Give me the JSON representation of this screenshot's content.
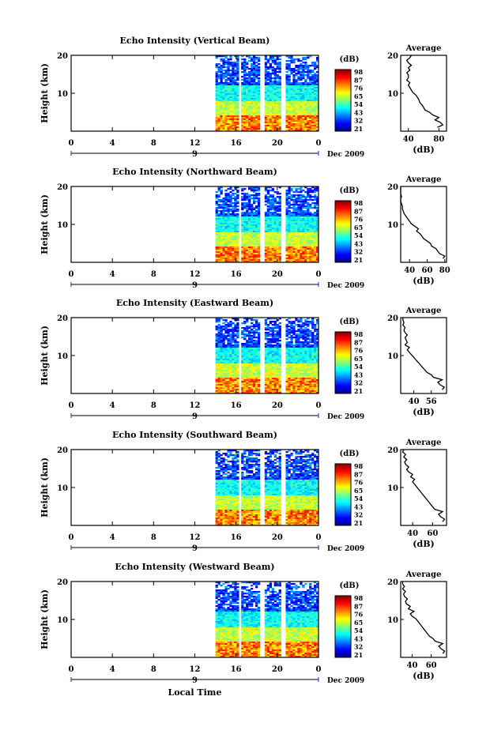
{
  "chart_data": [
    {
      "type": "heatmap",
      "title": "Echo Intensity (Vertical Beam)",
      "ylabel": "Height (km)",
      "x_ticks": [
        "0",
        "4",
        "8",
        "12",
        "16",
        "20",
        "0"
      ],
      "date_tick": "9",
      "date_label": "Dec 2009",
      "ylim": [
        0,
        20
      ],
      "y_ticks": [
        "10",
        "20"
      ],
      "colorbar": {
        "unit": "(dB)",
        "ticks": [
          "98",
          "87",
          "76",
          "65",
          "54",
          "43",
          "32",
          "21"
        ]
      },
      "profile": {
        "title": "Average",
        "xlabel": "(dB)",
        "x_ticks": [
          "40",
          "80"
        ],
        "xlim": [
          30,
          90
        ],
        "values": [
          78,
          85,
          82,
          75,
          80,
          72,
          68,
          62,
          60,
          58,
          55,
          54,
          52,
          50,
          46,
          44,
          42,
          40,
          42,
          38,
          40,
          40,
          38,
          42,
          40,
          44,
          40,
          38,
          42,
          44
        ]
      }
    },
    {
      "type": "heatmap",
      "title": "Echo Intensity (Northward Beam)",
      "ylabel": "Height (km)",
      "x_ticks": [
        "0",
        "4",
        "8",
        "12",
        "16",
        "20",
        "0"
      ],
      "date_tick": "9",
      "date_label": "Dec 2009",
      "ylim": [
        0,
        20
      ],
      "y_ticks": [
        "10",
        "20"
      ],
      "colorbar": {
        "unit": "(dB)",
        "ticks": [
          "98",
          "87",
          "76",
          "65",
          "54",
          "43",
          "32",
          "21"
        ]
      },
      "profile": {
        "title": "Average",
        "xlabel": "(dB)",
        "x_ticks": [
          "40",
          "60",
          "80"
        ],
        "xlim": [
          30,
          82
        ],
        "values": [
          78,
          80,
          74,
          72,
          70,
          65,
          64,
          60,
          56,
          54,
          52,
          48,
          50,
          46,
          42,
          40,
          38,
          36,
          34,
          33,
          32,
          32,
          31,
          30,
          30,
          31,
          30,
          29,
          30,
          30
        ]
      }
    },
    {
      "type": "heatmap",
      "title": "Echo Intensity (Eastward Beam)",
      "ylabel": "Height (km)",
      "x_ticks": [
        "0",
        "4",
        "8",
        "12",
        "16",
        "20",
        "0"
      ],
      "date_tick": "9",
      "date_label": "Dec 2009",
      "ylim": [
        0,
        20
      ],
      "y_ticks": [
        "10",
        "20"
      ],
      "colorbar": {
        "unit": "(dB)",
        "ticks": [
          "98",
          "87",
          "76",
          "65",
          "54",
          "43",
          "32",
          "21"
        ]
      },
      "profile": {
        "title": "Average",
        "xlabel": "(dB)",
        "x_ticks": [
          "40",
          "56"
        ],
        "xlim": [
          28,
          70
        ],
        "values": [
          66,
          68,
          64,
          62,
          66,
          58,
          56,
          52,
          50,
          48,
          46,
          44,
          42,
          40,
          38,
          36,
          34,
          36,
          32,
          34,
          33,
          32,
          34,
          32,
          31,
          32,
          30,
          31,
          30,
          30
        ]
      }
    },
    {
      "type": "heatmap",
      "title": "Echo Intensity (Southward Beam)",
      "ylabel": "Height (km)",
      "x_ticks": [
        "0",
        "4",
        "8",
        "12",
        "16",
        "20",
        "0"
      ],
      "date_tick": "9",
      "date_label": "Dec 2009",
      "ylim": [
        0,
        20
      ],
      "y_ticks": [
        "10",
        "20"
      ],
      "colorbar": {
        "unit": "(dB)",
        "ticks": [
          "98",
          "87",
          "76",
          "65",
          "54",
          "43",
          "32",
          "21"
        ]
      },
      "profile": {
        "title": "Average",
        "xlabel": "(dB)",
        "x_ticks": [
          "40",
          "60"
        ],
        "xlim": [
          28,
          74
        ],
        "values": [
          70,
          72,
          68,
          66,
          70,
          62,
          60,
          58,
          56,
          54,
          52,
          50,
          48,
          46,
          44,
          42,
          40,
          42,
          38,
          40,
          36,
          34,
          36,
          33,
          32,
          34,
          31,
          33,
          30,
          31
        ]
      }
    },
    {
      "type": "heatmap",
      "title": "Echo Intensity (Westward Beam)",
      "ylabel": "Height (km)",
      "xlabel": "Local Time",
      "x_ticks": [
        "0",
        "4",
        "8",
        "12",
        "16",
        "20",
        "0"
      ],
      "date_tick": "9",
      "date_label": "Dec 2009",
      "ylim": [
        0,
        20
      ],
      "y_ticks": [
        "10",
        "20"
      ],
      "colorbar": {
        "unit": "(dB)",
        "ticks": [
          "98",
          "87",
          "76",
          "65",
          "54",
          "43",
          "32",
          "21"
        ]
      },
      "profile": {
        "title": "Average",
        "xlabel": "(dB)",
        "x_ticks": [
          "40",
          "60"
        ],
        "xlim": [
          28,
          76
        ],
        "values": [
          72,
          74,
          70,
          68,
          72,
          64,
          62,
          58,
          56,
          54,
          52,
          50,
          48,
          46,
          44,
          40,
          38,
          42,
          36,
          38,
          34,
          33,
          35,
          32,
          31,
          33,
          30,
          32,
          30,
          30
        ]
      }
    }
  ]
}
